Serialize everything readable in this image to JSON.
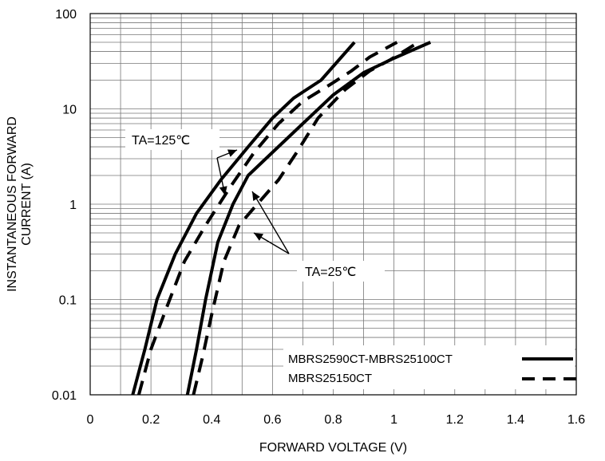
{
  "chart_data": {
    "type": "line",
    "xlabel": "FORWARD VOLTAGE (V)",
    "ylabel": "INSTANTANEOUS FORWARD CURRENT (A)",
    "xlim": [
      0,
      1.6
    ],
    "ylim": [
      0.01,
      100
    ],
    "y_scale": "log",
    "x_ticks": [
      "0",
      "0.2",
      "0.4",
      "0.6",
      "0.8",
      "1",
      "1.2",
      "1.4",
      "1.6"
    ],
    "y_ticks": [
      "0.01",
      "0.1",
      "1",
      "10",
      "100"
    ],
    "grid": true,
    "legend_position": "bottom-right",
    "series": [
      {
        "name": "MBRS2590CT-MBRS25100CT",
        "condition": "TA=125℃",
        "style": "solid",
        "x": [
          0.14,
          0.18,
          0.22,
          0.28,
          0.35,
          0.43,
          0.52,
          0.6,
          0.67,
          0.76,
          0.87
        ],
        "y": [
          0.01,
          0.03,
          0.1,
          0.3,
          0.8,
          1.8,
          4.0,
          8.0,
          13.0,
          20.0,
          50.0
        ]
      },
      {
        "name": "MBRS25150CT",
        "condition": "TA=125℃",
        "style": "dashed",
        "x": [
          0.16,
          0.2,
          0.25,
          0.31,
          0.38,
          0.46,
          0.54,
          0.62,
          0.7,
          0.79,
          0.86,
          0.92,
          1.01
        ],
        "y": [
          0.01,
          0.03,
          0.08,
          0.25,
          0.6,
          1.5,
          3.5,
          7.0,
          12.0,
          18.0,
          25.0,
          35.0,
          50.0
        ]
      },
      {
        "name": "MBRS2590CT-MBRS25100CT",
        "condition": "TA=25℃",
        "style": "solid",
        "x": [
          0.32,
          0.35,
          0.38,
          0.42,
          0.47,
          0.52,
          0.6,
          0.7,
          0.8,
          0.9,
          1.0,
          1.12
        ],
        "y": [
          0.01,
          0.03,
          0.1,
          0.4,
          1.0,
          2.0,
          3.5,
          7.0,
          14.0,
          24.0,
          34.0,
          50.0
        ]
      },
      {
        "name": "MBRS25150CT",
        "condition": "TA=25℃",
        "style": "dashed",
        "x": [
          0.34,
          0.37,
          0.4,
          0.44,
          0.49,
          0.55,
          0.62,
          0.68,
          0.75,
          0.84,
          0.92,
          0.99,
          1.08
        ],
        "y": [
          0.01,
          0.025,
          0.07,
          0.25,
          0.6,
          1.0,
          1.8,
          3.5,
          8.0,
          16.0,
          25.0,
          33.0,
          50.0
        ]
      }
    ],
    "annotations": [
      "TA=125℃",
      "TA=25℃"
    ]
  }
}
